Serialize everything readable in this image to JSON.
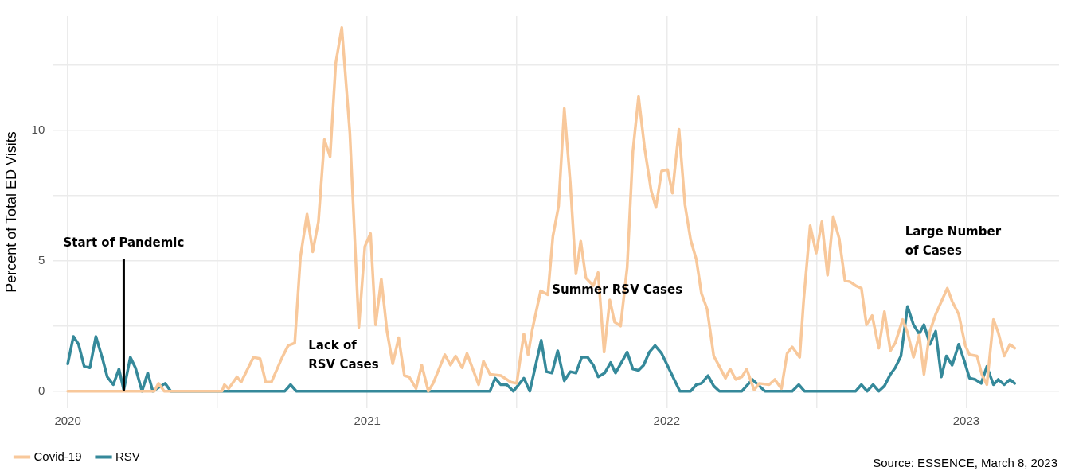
{
  "chart_data": {
    "type": "line",
    "ylabel": "Percent of Total ED Visits",
    "xlim": [
      2019.95,
      2023.31
    ],
    "xticks": [
      2020,
      {
        "value": 2020.5,
        "label": null
      },
      2021,
      {
        "value": 2021.5,
        "label": null
      },
      2022,
      {
        "value": 2022.5,
        "label": null
      },
      2023
    ],
    "ylim": [
      -0.65,
      14.4
    ],
    "yticks": [
      0,
      {
        "value": 2.5,
        "label": null
      },
      5,
      {
        "value": 7.5,
        "label": null
      },
      10,
      {
        "value": 12.5,
        "label": null
      }
    ],
    "grid": true,
    "legend": "bottom",
    "series": [
      {
        "name": "Covid-19",
        "color": "#f8c89b",
        "x": [
          2020.0,
          2020.289,
          2020.303,
          2020.322,
          2020.515,
          2020.523,
          2020.537,
          2020.565,
          2020.579,
          2020.62,
          2020.642,
          2020.661,
          2020.68,
          2020.716,
          2020.736,
          2020.758,
          2020.777,
          2020.799,
          2020.818,
          2020.837,
          2020.857,
          2020.876,
          2020.895,
          2020.915,
          2020.942,
          2020.972,
          2020.992,
          2021.011,
          2021.028,
          2021.047,
          2021.066,
          2021.085,
          2021.105,
          2021.124,
          2021.14,
          2021.163,
          2021.182,
          2021.204,
          2021.22,
          2021.259,
          2021.278,
          2021.295,
          2021.317,
          2021.333,
          2021.372,
          2021.388,
          2021.41,
          2021.446,
          2021.479,
          2021.499,
          2021.523,
          2021.537,
          2021.551,
          2021.579,
          2021.603,
          2021.62,
          2021.639,
          2021.658,
          2021.678,
          2021.697,
          2021.713,
          2021.73,
          2021.755,
          2021.771,
          2021.791,
          2021.81,
          2021.826,
          2021.846,
          2021.868,
          2021.887,
          2021.906,
          2021.926,
          2021.948,
          2021.964,
          2021.983,
          2022.003,
          2022.019,
          2022.041,
          2022.061,
          2022.08,
          2022.099,
          2022.116,
          2022.135,
          2022.157,
          2022.176,
          2022.196,
          2022.212,
          2022.231,
          2022.251,
          2022.267,
          2022.292,
          2022.309,
          2022.342,
          2022.361,
          2022.383,
          2022.402,
          2022.419,
          2022.444,
          2022.457,
          2022.479,
          2022.499,
          2022.518,
          2022.537,
          2022.556,
          2022.576,
          2022.595,
          2022.612,
          2022.631,
          2022.65,
          2022.667,
          2022.686,
          2022.708,
          2022.727,
          2022.747,
          2022.763,
          2022.788,
          2022.804,
          2022.824,
          2022.843,
          2022.859,
          2022.879,
          2022.898,
          2022.937,
          2022.953,
          2022.975,
          2022.997,
          2023.011,
          2023.036,
          2023.052,
          2023.069,
          2023.091,
          2023.107,
          2023.127,
          2023.146,
          2023.162
        ],
        "values": [
          0,
          0,
          0.3,
          0,
          0,
          0.25,
          0.1,
          0.55,
          0.35,
          1.3,
          1.25,
          0.35,
          0.35,
          1.3,
          1.75,
          1.85,
          5.15,
          6.8,
          5.35,
          6.5,
          9.65,
          9.0,
          12.6,
          13.95,
          9.9,
          2.45,
          5.55,
          6.05,
          2.55,
          4.3,
          2.3,
          1.05,
          2.05,
          0.6,
          0.55,
          0.1,
          1.0,
          0,
          0.3,
          1.4,
          1.0,
          1.35,
          0.9,
          1.45,
          0.25,
          1.15,
          0.65,
          0.6,
          0.35,
          0.3,
          2.2,
          1.4,
          2.35,
          3.85,
          3.7,
          5.95,
          7.1,
          10.85,
          8.0,
          4.5,
          5.75,
          4.35,
          4.05,
          4.55,
          1.5,
          3.5,
          2.65,
          2.5,
          4.75,
          9.2,
          11.3,
          9.35,
          7.7,
          7.05,
          8.45,
          8.5,
          7.6,
          10.05,
          7.15,
          5.8,
          5.05,
          3.75,
          3.15,
          1.35,
          0.95,
          0.5,
          0.85,
          0.45,
          0.55,
          0.85,
          0.05,
          0.3,
          0.25,
          0.45,
          0.1,
          1.45,
          1.7,
          1.3,
          3.45,
          6.35,
          5.3,
          6.5,
          4.45,
          6.7,
          5.85,
          4.25,
          4.2,
          4.05,
          3.95,
          2.55,
          2.9,
          1.65,
          3.05,
          1.55,
          1.85,
          2.75,
          2.25,
          1.3,
          2.15,
          0.65,
          2.3,
          2.95,
          3.95,
          3.45,
          2.95,
          1.75,
          1.4,
          1.35,
          0.65,
          0.25,
          2.75,
          2.25,
          1.35,
          1.8,
          1.65
        ]
      },
      {
        "name": "RSV",
        "color": "#35899a",
        "x": [
          2020.0,
          2020.019,
          2020.036,
          2020.055,
          2020.074,
          2020.094,
          2020.116,
          2020.132,
          2020.152,
          2020.171,
          2020.187,
          2020.209,
          2020.226,
          2020.248,
          2020.267,
          2020.284,
          2020.325,
          2020.344,
          2020.725,
          2020.744,
          2020.763,
          2021.41,
          2021.427,
          2021.446,
          2021.466,
          2021.488,
          2021.523,
          2021.543,
          2021.581,
          2021.598,
          2021.617,
          2021.636,
          2021.658,
          2021.678,
          2021.697,
          2021.716,
          2021.736,
          2021.755,
          2021.771,
          2021.793,
          2021.813,
          2021.829,
          2021.851,
          2021.868,
          2021.887,
          2021.906,
          2021.923,
          2021.942,
          2021.961,
          2021.983,
          2022.044,
          2022.08,
          2022.099,
          2022.116,
          2022.138,
          2022.157,
          2022.176,
          2022.251,
          2022.286,
          2022.328,
          2022.419,
          2022.441,
          2022.46,
          2022.631,
          2022.65,
          2022.669,
          2022.689,
          2022.708,
          2022.727,
          2022.747,
          2022.763,
          2022.782,
          2022.804,
          2022.824,
          2022.843,
          2022.859,
          2022.879,
          2022.898,
          2022.917,
          2022.934,
          2022.953,
          2022.975,
          2022.994,
          2023.011,
          2023.03,
          2023.05,
          2023.069,
          2023.091,
          2023.107,
          2023.127,
          2023.146,
          2023.162
        ],
        "values": [
          1.05,
          2.1,
          1.8,
          0.95,
          0.9,
          2.1,
          1.25,
          0.55,
          0.25,
          0.85,
          0.05,
          1.3,
          0.9,
          0,
          0.7,
          0,
          0.3,
          0,
          0,
          0.25,
          0,
          0,
          0.5,
          0.25,
          0.25,
          0,
          0.5,
          0,
          1.95,
          0.75,
          0.7,
          1.55,
          0.4,
          0.75,
          0.7,
          1.3,
          1.3,
          1.0,
          0.55,
          0.7,
          1.1,
          0.7,
          1.15,
          1.5,
          0.85,
          0.8,
          1.0,
          1.5,
          1.75,
          1.45,
          0,
          0,
          0.25,
          0.3,
          0.6,
          0.2,
          0,
          0,
          0.45,
          0,
          0,
          0.25,
          0,
          0,
          0.25,
          0,
          0.25,
          0,
          0.2,
          0.65,
          0.9,
          1.35,
          3.25,
          2.55,
          2.2,
          2.55,
          1.8,
          2.3,
          0.55,
          1.35,
          1.0,
          1.8,
          1.15,
          0.5,
          0.45,
          0.3,
          0.95,
          0.25,
          0.45,
          0.25,
          0.45,
          0.3
        ]
      }
    ],
    "ref_lines": [
      {
        "axis": "x",
        "value": 2020.187,
        "label": "Start of Pandemic",
        "color": "#000000"
      }
    ],
    "annotations": [
      "Lack of\nRSV Cases",
      {
        "text": "Summer RSV Cases",
        "x": 2021.617,
        "y": 3.85
      },
      "Large Number\nof Cases",
      "Source: ESSENCE, March 8, 2023"
    ]
  }
}
